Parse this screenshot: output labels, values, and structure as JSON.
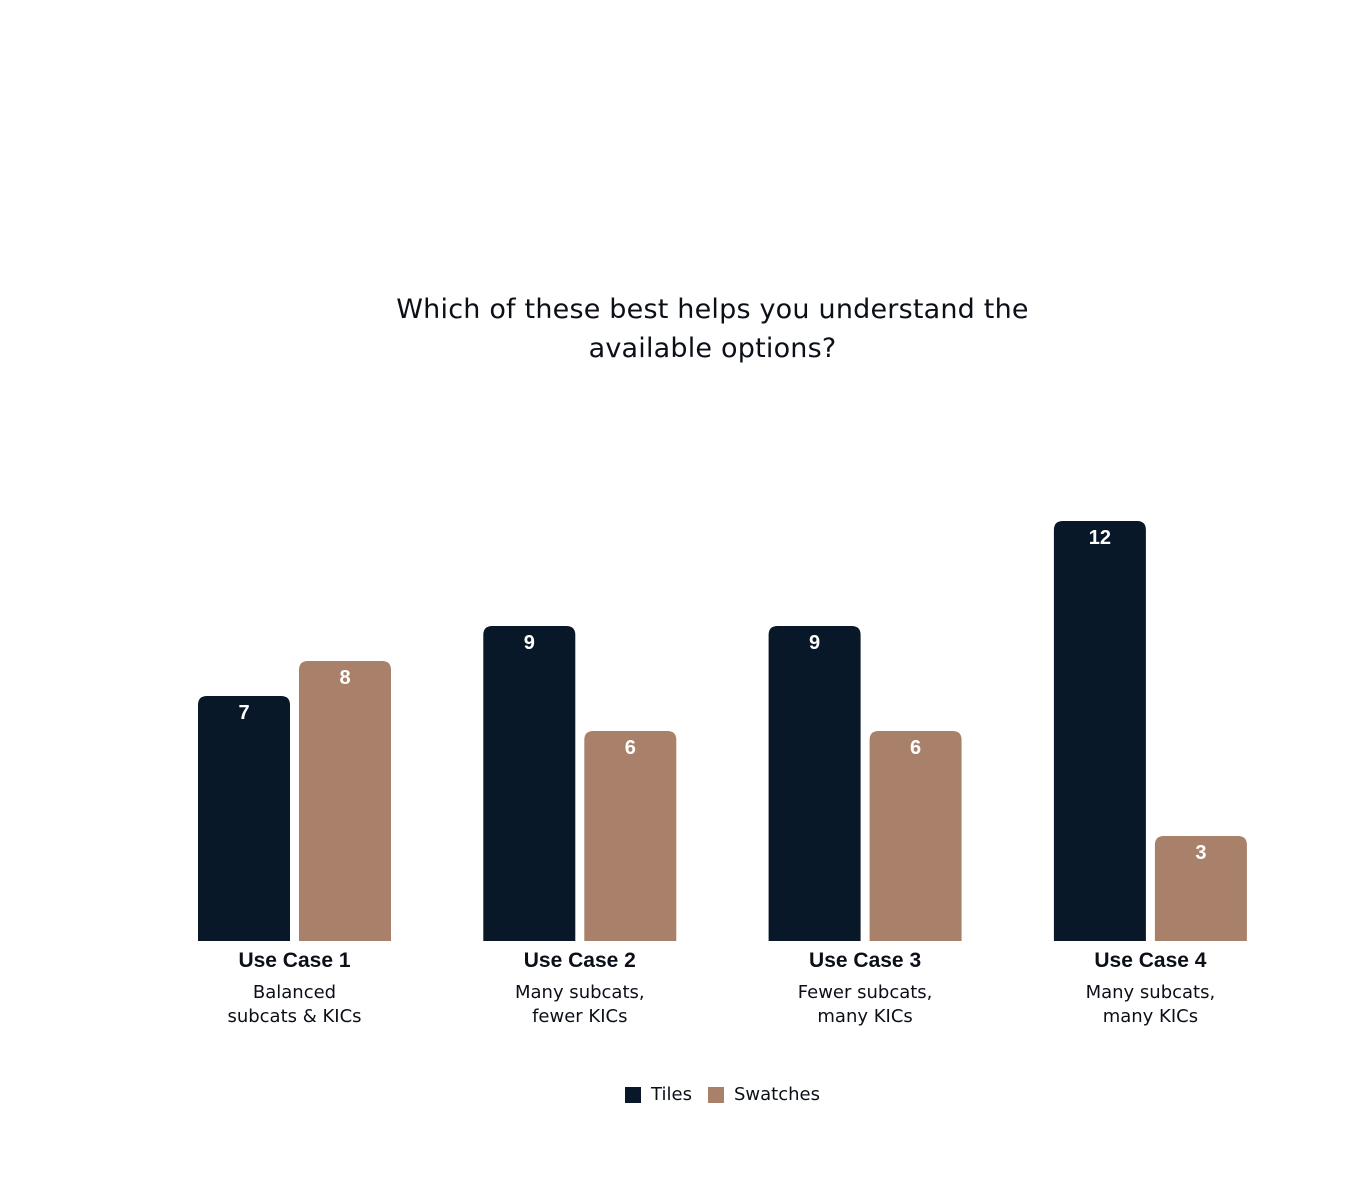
{
  "chart_data": {
    "type": "bar",
    "title_lines": [
      "Which of these best helps you understand the",
      "available options?"
    ],
    "categories": [
      {
        "name": "Use Case 1",
        "desc": [
          "Balanced",
          "subcats & KICs"
        ]
      },
      {
        "name": "Use Case 2",
        "desc": [
          "Many subcats,",
          "fewer KICs"
        ]
      },
      {
        "name": "Use Case 3",
        "desc": [
          "Fewer subcats,",
          "many KICs"
        ]
      },
      {
        "name": "Use Case 4",
        "desc": [
          "Many subcats,",
          "many KICs"
        ]
      }
    ],
    "series": [
      {
        "name": "Tiles",
        "color": "#081828",
        "values": [
          7,
          9,
          9,
          12
        ]
      },
      {
        "name": "Swatches",
        "color": "#a9816a",
        "values": [
          8,
          6,
          6,
          3
        ]
      }
    ],
    "ylim": [
      0,
      12
    ],
    "grid": false,
    "legend_position": "bottom-center",
    "data_labels": "inside-top"
  }
}
